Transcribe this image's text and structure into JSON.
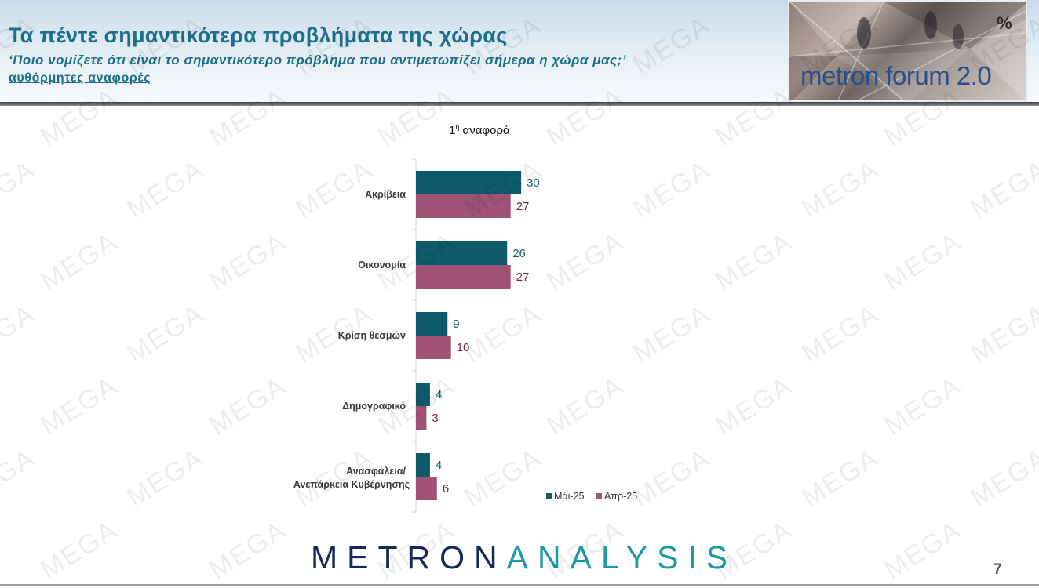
{
  "header": {
    "title": "Τα πέντε σημαντικότερα προβλήματα της χώρας",
    "subtitle": "‘Ποιο νομίζετε ότι είναι το σημαντικότερο πρόβλημα που αντιμετωπίζει σήμερα η χώρα μας;’",
    "subnote": "αυθόρμητες αναφορές",
    "logo_text": "metron forum 2.0",
    "unit_symbol": "%"
  },
  "chart_data": {
    "type": "bar",
    "orientation": "horizontal",
    "subtitle_main": "1",
    "subtitle_sup": "η",
    "subtitle_rest": " αναφορά",
    "categories": [
      "Ακρίβεια",
      "Οικονομία",
      "Κρίση θεσμών",
      "Δημογραφικό",
      "Ανασφάλεια/Ανεπάρκεια Κυβέρνησης"
    ],
    "series": [
      {
        "name": "Μάι-25",
        "values": [
          30,
          26,
          9,
          4,
          4
        ],
        "color": "#0d5a6b"
      },
      {
        "name": "Απρ-25",
        "values": [
          27,
          27,
          10,
          3,
          6
        ],
        "color": "#a05276"
      }
    ],
    "xlim": [
      0,
      100
    ],
    "grid": false,
    "data_labels": true,
    "legend": "bottom-right"
  },
  "footer": {
    "brand_part1": "METRON",
    "brand_part2": "ANALYSIS",
    "page_number": "7"
  },
  "watermark": "MEGA",
  "colors": {
    "title": "#1d6e8a",
    "series_1": "#0d5a6b",
    "series_2": "#a05276",
    "brand_dark": "#152858",
    "brand_teal": "#1b9aa8"
  }
}
